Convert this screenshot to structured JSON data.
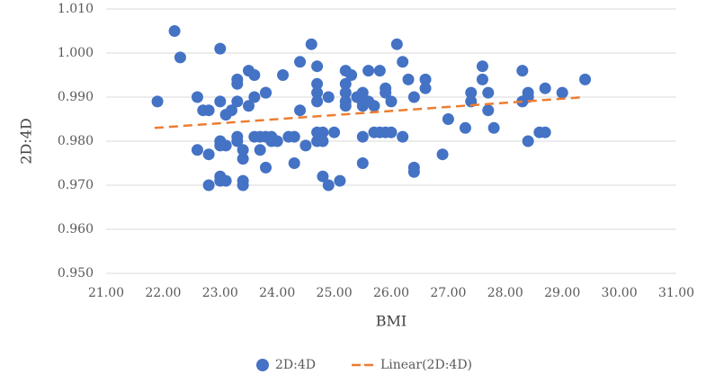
{
  "chart_data": {
    "type": "scatter",
    "x_label": "BMI",
    "y_label": "2D:4D",
    "xlim": [
      21,
      31
    ],
    "ylim": [
      0.95,
      1.01
    ],
    "xticks": [
      {
        "value": 21,
        "label": "21.00"
      },
      {
        "value": 22,
        "label": "22.00"
      },
      {
        "value": 23,
        "label": "23.00"
      },
      {
        "value": 24,
        "label": "24.00"
      },
      {
        "value": 25,
        "label": "25.00"
      },
      {
        "value": 26,
        "label": "26.00"
      },
      {
        "value": 27,
        "label": "27.00"
      },
      {
        "value": 28,
        "label": "28.00"
      },
      {
        "value": 29,
        "label": "29.00"
      },
      {
        "value": 30,
        "label": "30.00"
      },
      {
        "value": 31,
        "label": "31.00"
      }
    ],
    "yticks": [
      {
        "value": 0.95,
        "label": "0.950"
      },
      {
        "value": 0.96,
        "label": "0.960"
      },
      {
        "value": 0.97,
        "label": "0.970"
      },
      {
        "value": 0.98,
        "label": "0.980"
      },
      {
        "value": 0.99,
        "label": "0.990"
      },
      {
        "value": 1.0,
        "label": "1.000"
      },
      {
        "value": 1.01,
        "label": "1.010"
      }
    ],
    "grid": true,
    "legend": "bottom",
    "series": [
      {
        "name": "2D:4D",
        "type": "scatter",
        "color": "#4472c4",
        "x": [
          21.9,
          22.2,
          22.3,
          22.6,
          22.6,
          22.7,
          22.8,
          22.8,
          22.8,
          23.0,
          23.0,
          23.0,
          23.0,
          23.0,
          23.0,
          23.1,
          23.1,
          23.1,
          23.2,
          23.3,
          23.3,
          23.3,
          23.3,
          23.3,
          23.4,
          23.4,
          23.4,
          23.4,
          23.5,
          23.5,
          23.6,
          23.6,
          23.6,
          23.7,
          23.7,
          23.8,
          23.8,
          23.8,
          23.8,
          23.9,
          23.9,
          24.0,
          24.1,
          24.2,
          24.3,
          24.3,
          24.4,
          24.4,
          24.5,
          24.6,
          24.7,
          24.7,
          24.7,
          24.7,
          24.7,
          24.7,
          24.8,
          24.8,
          24.8,
          24.9,
          24.9,
          25.0,
          25.1,
          25.2,
          25.2,
          25.2,
          25.2,
          25.2,
          25.3,
          25.4,
          25.5,
          25.5,
          25.5,
          25.5,
          25.5,
          25.6,
          25.6,
          25.7,
          25.7,
          25.8,
          25.8,
          25.9,
          25.9,
          25.9,
          26.0,
          26.0,
          26.1,
          26.2,
          26.2,
          26.3,
          26.4,
          26.4,
          26.4,
          26.6,
          26.6,
          26.9,
          27.0,
          27.3,
          27.4,
          27.4,
          27.6,
          27.6,
          27.7,
          27.7,
          27.8,
          28.3,
          28.3,
          28.4,
          28.4,
          28.4,
          28.6,
          28.7,
          28.7,
          29.0,
          29.4
        ],
        "values": [
          0.989,
          1.005,
          0.999,
          0.99,
          0.978,
          0.987,
          0.987,
          0.977,
          0.97,
          1.001,
          0.989,
          0.98,
          0.979,
          0.972,
          0.971,
          0.986,
          0.979,
          0.971,
          0.987,
          0.994,
          0.993,
          0.989,
          0.981,
          0.98,
          0.978,
          0.971,
          0.97,
          0.976,
          0.988,
          0.996,
          0.995,
          0.99,
          0.981,
          0.981,
          0.978,
          0.991,
          0.991,
          0.981,
          0.974,
          0.98,
          0.981,
          0.98,
          0.995,
          0.981,
          0.981,
          0.975,
          0.998,
          0.987,
          0.979,
          1.002,
          0.997,
          0.993,
          0.991,
          0.989,
          0.982,
          0.98,
          0.982,
          0.98,
          0.972,
          0.99,
          0.97,
          0.982,
          0.971,
          0.996,
          0.993,
          0.991,
          0.989,
          0.988,
          0.995,
          0.99,
          0.991,
          0.989,
          0.988,
          0.981,
          0.975,
          0.996,
          0.989,
          0.988,
          0.982,
          0.996,
          0.982,
          0.992,
          0.991,
          0.982,
          0.989,
          0.982,
          1.002,
          0.998,
          0.981,
          0.994,
          0.99,
          0.974,
          0.973,
          0.994,
          0.992,
          0.977,
          0.985,
          0.983,
          0.991,
          0.989,
          0.997,
          0.994,
          0.987,
          0.991,
          0.983,
          0.989,
          0.996,
          0.99,
          0.991,
          0.98,
          0.982,
          0.982,
          0.992,
          0.991,
          0.994
        ]
      },
      {
        "name": "Linear(2D:4D)",
        "type": "line",
        "dashed": true,
        "color": "#ed7d31",
        "x": [
          21.85,
          29.4
        ],
        "values": [
          0.983,
          0.99
        ]
      }
    ]
  }
}
